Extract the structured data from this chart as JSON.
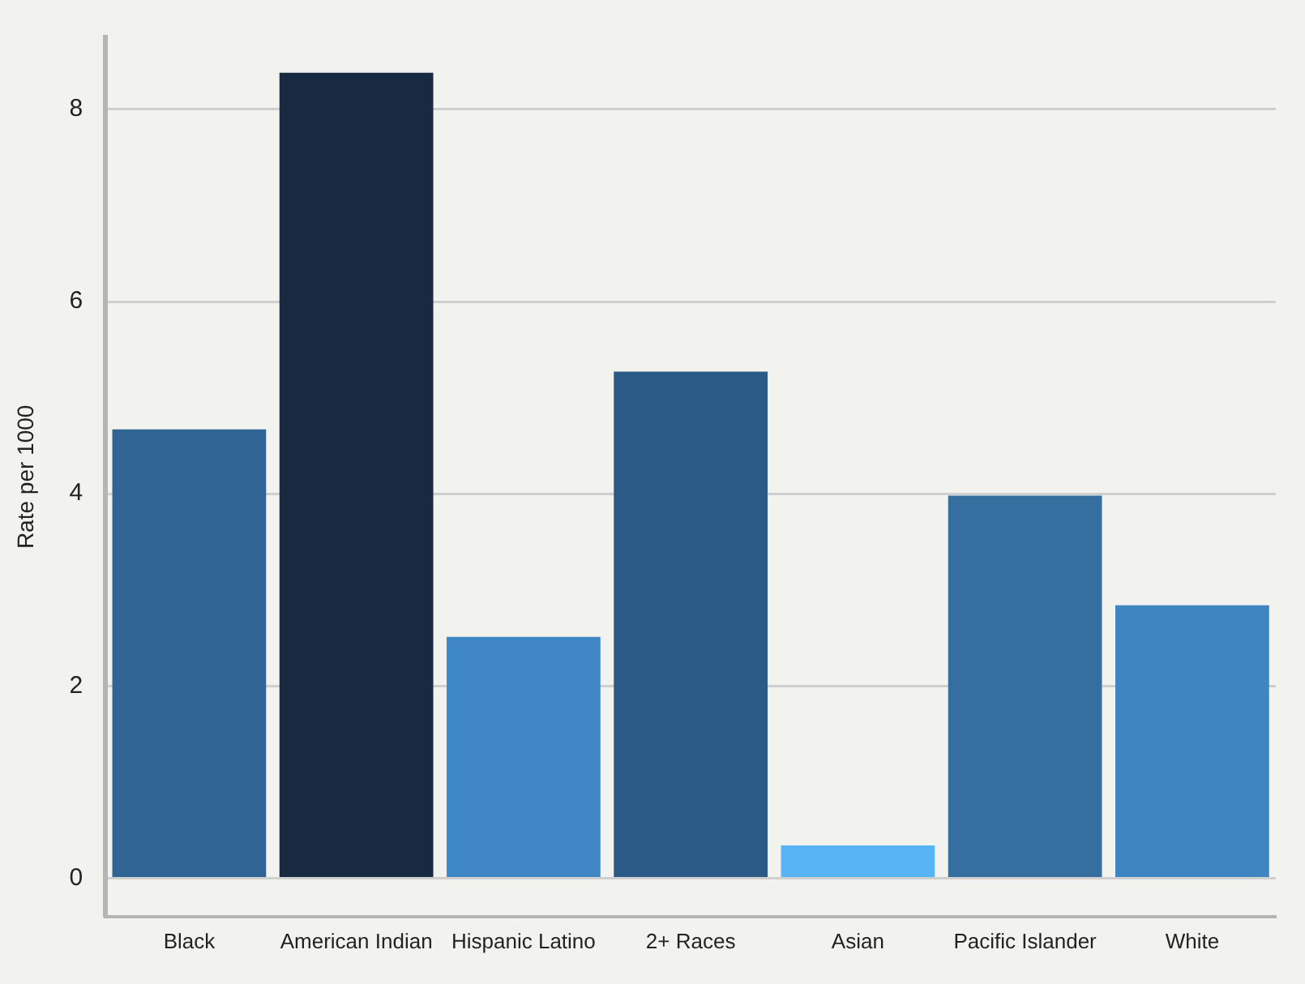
{
  "chart_data": {
    "type": "bar",
    "ylabel": "Rate per 1000",
    "categories": [
      "Black",
      "American Indian",
      "Hispanic Latino",
      "2+ Races",
      "Asian",
      "Pacific Islander",
      "White"
    ],
    "values": [
      4.67,
      8.38,
      2.51,
      5.27,
      0.34,
      3.98,
      2.84
    ],
    "colors": [
      "#2f6494",
      "#172a42",
      "#3f88c5",
      "#2b5a87",
      "#58b4f5",
      "#346fa0",
      "#3f85c2"
    ],
    "ylim": [
      -0.4,
      8.75
    ],
    "yticks": [
      0,
      2,
      4,
      6,
      8
    ],
    "grid": "y",
    "legend": false
  }
}
